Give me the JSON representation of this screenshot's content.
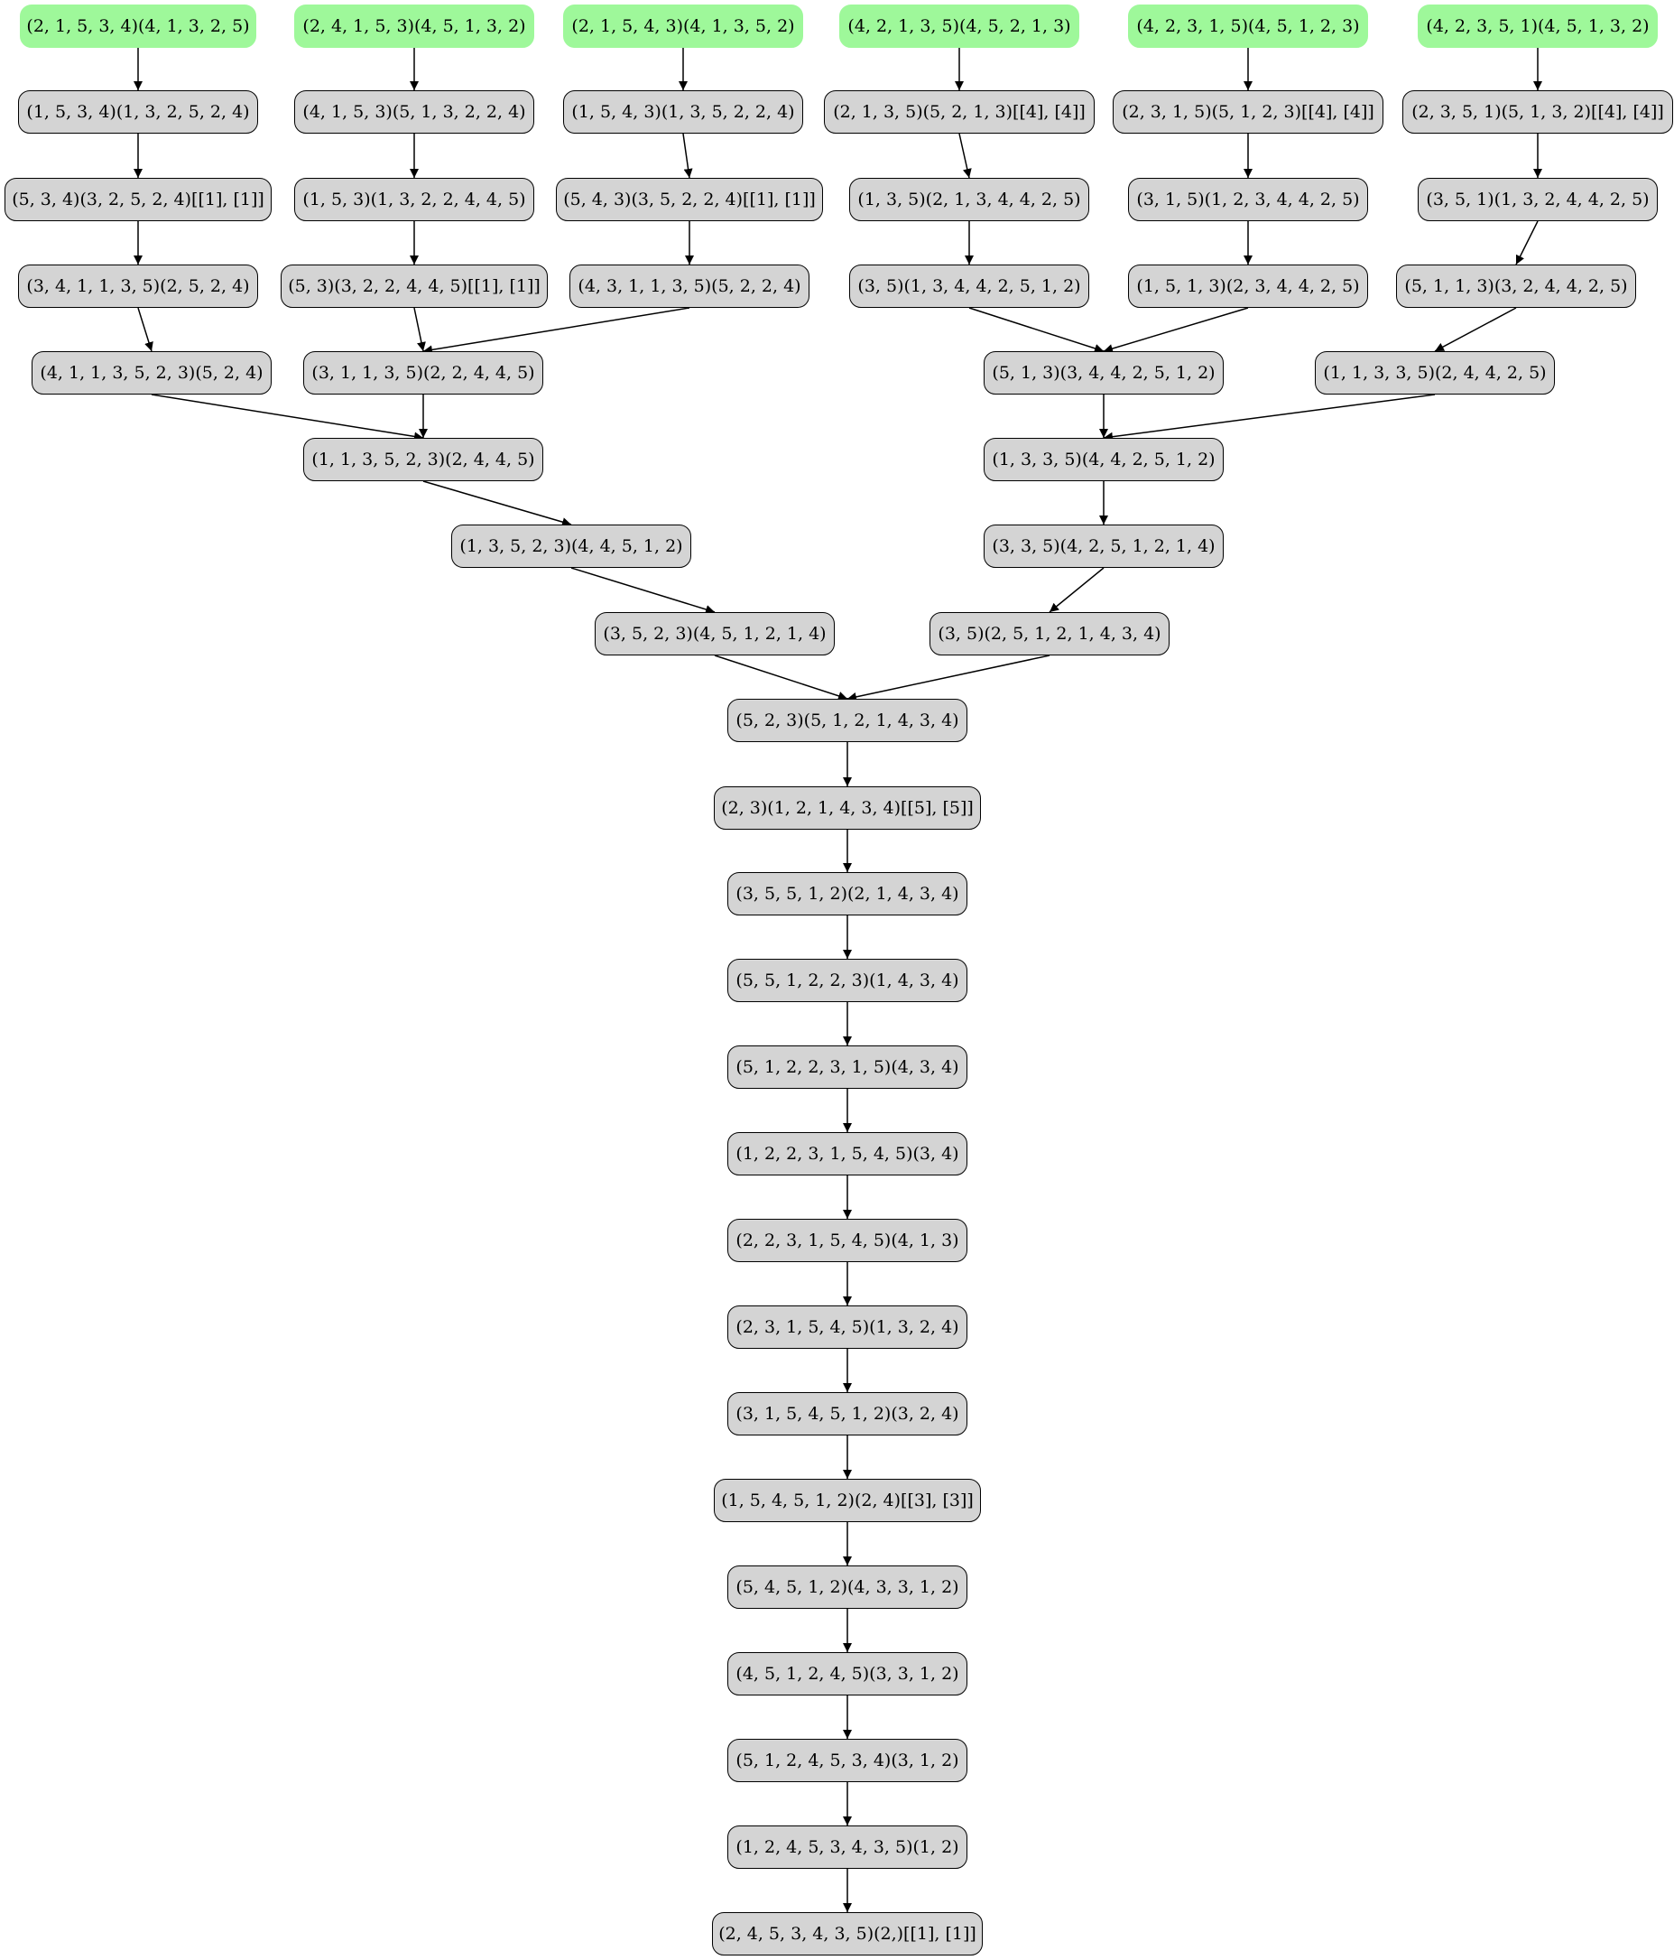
{
  "diagram": {
    "type": "directed-graph",
    "colors": {
      "source_fill": "#9ef89a",
      "inner_fill": "#d4d4d4",
      "stroke": "#000000"
    },
    "nodes": [
      {
        "id": "a0",
        "label": "(2, 1, 5, 3, 4)(4, 1, 3, 2, 5)",
        "kind": "source"
      },
      {
        "id": "b0",
        "label": "(2, 4, 1, 5, 3)(4, 5, 1, 3, 2)",
        "kind": "source"
      },
      {
        "id": "c0",
        "label": "(2, 1, 5, 4, 3)(4, 1, 3, 5, 2)",
        "kind": "source"
      },
      {
        "id": "d0",
        "label": "(4, 2, 1, 3, 5)(4, 5, 2, 1, 3)",
        "kind": "source"
      },
      {
        "id": "e0",
        "label": "(4, 2, 3, 1, 5)(4, 5, 1, 2, 3)",
        "kind": "source"
      },
      {
        "id": "f0",
        "label": "(4, 2, 3, 5, 1)(4, 5, 1, 3, 2)",
        "kind": "source"
      },
      {
        "id": "a1",
        "label": "(1, 5, 3, 4)(1, 3, 2, 5, 2, 4)",
        "kind": "inner"
      },
      {
        "id": "b1",
        "label": "(4, 1, 5, 3)(5, 1, 3, 2, 2, 4)",
        "kind": "inner"
      },
      {
        "id": "c1",
        "label": "(1, 5, 4, 3)(1, 3, 5, 2, 2, 4)",
        "kind": "inner"
      },
      {
        "id": "d1",
        "label": "(2, 1, 3, 5)(5, 2, 1, 3)[[4], [4]]",
        "kind": "inner"
      },
      {
        "id": "e1",
        "label": "(2, 3, 1, 5)(5, 1, 2, 3)[[4], [4]]",
        "kind": "inner"
      },
      {
        "id": "f1",
        "label": "(2, 3, 5, 1)(5, 1, 3, 2)[[4], [4]]",
        "kind": "inner"
      },
      {
        "id": "a2",
        "label": "(5, 3, 4)(3, 2, 5, 2, 4)[[1], [1]]",
        "kind": "inner"
      },
      {
        "id": "b2",
        "label": "(1, 5, 3)(1, 3, 2, 2, 4, 4, 5)",
        "kind": "inner"
      },
      {
        "id": "c2",
        "label": "(5, 4, 3)(3, 5, 2, 2, 4)[[1], [1]]",
        "kind": "inner"
      },
      {
        "id": "d2",
        "label": "(1, 3, 5)(2, 1, 3, 4, 4, 2, 5)",
        "kind": "inner"
      },
      {
        "id": "e2",
        "label": "(3, 1, 5)(1, 2, 3, 4, 4, 2, 5)",
        "kind": "inner"
      },
      {
        "id": "f2",
        "label": "(3, 5, 1)(1, 3, 2, 4, 4, 2, 5)",
        "kind": "inner"
      },
      {
        "id": "a3",
        "label": "(3, 4, 1, 1, 3, 5)(2, 5, 2, 4)",
        "kind": "inner"
      },
      {
        "id": "b3",
        "label": "(5, 3)(3, 2, 2, 4, 4, 5)[[1], [1]]",
        "kind": "inner"
      },
      {
        "id": "c3",
        "label": "(4, 3, 1, 1, 3, 5)(5, 2, 2, 4)",
        "kind": "inner"
      },
      {
        "id": "d3",
        "label": "(3, 5)(1, 3, 4, 4, 2, 5, 1, 2)",
        "kind": "inner"
      },
      {
        "id": "e3",
        "label": "(1, 5, 1, 3)(2, 3, 4, 4, 2, 5)",
        "kind": "inner"
      },
      {
        "id": "f3",
        "label": "(5, 1, 1, 3)(3, 2, 4, 4, 2, 5)",
        "kind": "inner"
      },
      {
        "id": "a4",
        "label": "(4, 1, 1, 3, 5, 2, 3)(5, 2, 4)",
        "kind": "inner"
      },
      {
        "id": "b4",
        "label": "(3, 1, 1, 3, 5)(2, 2, 4, 4, 5)",
        "kind": "inner"
      },
      {
        "id": "d4",
        "label": "(5, 1, 3)(3, 4, 4, 2, 5, 1, 2)",
        "kind": "inner"
      },
      {
        "id": "f4",
        "label": "(1, 1, 3, 3, 5)(2, 4, 4, 2, 5)",
        "kind": "inner"
      },
      {
        "id": "l5",
        "label": "(1, 1, 3, 5, 2, 3)(2, 4, 4, 5)",
        "kind": "inner"
      },
      {
        "id": "r5",
        "label": "(1, 3, 3, 5)(4, 4, 2, 5, 1, 2)",
        "kind": "inner"
      },
      {
        "id": "l6",
        "label": "(1, 3, 5, 2, 3)(4, 4, 5, 1, 2)",
        "kind": "inner"
      },
      {
        "id": "r6",
        "label": "(3, 3, 5)(4, 2, 5, 1, 2, 1, 4)",
        "kind": "inner"
      },
      {
        "id": "l7",
        "label": "(3, 5, 2, 3)(4, 5, 1, 2, 1, 4)",
        "kind": "inner"
      },
      {
        "id": "r7",
        "label": "(3, 5)(2, 5, 1, 2, 1, 4, 3, 4)",
        "kind": "inner"
      },
      {
        "id": "m8",
        "label": "(5, 2, 3)(5, 1, 2, 1, 4, 3, 4)",
        "kind": "inner"
      },
      {
        "id": "m9",
        "label": "(2, 3)(1, 2, 1, 4, 3, 4)[[5], [5]]",
        "kind": "inner"
      },
      {
        "id": "m10",
        "label": "(3, 5, 5, 1, 2)(2, 1, 4, 3, 4)",
        "kind": "inner"
      },
      {
        "id": "m11",
        "label": "(5, 5, 1, 2, 2, 3)(1, 4, 3, 4)",
        "kind": "inner"
      },
      {
        "id": "m12",
        "label": "(5, 1, 2, 2, 3, 1, 5)(4, 3, 4)",
        "kind": "inner"
      },
      {
        "id": "m13",
        "label": "(1, 2, 2, 3, 1, 5, 4, 5)(3, 4)",
        "kind": "inner"
      },
      {
        "id": "m14",
        "label": "(2, 2, 3, 1, 5, 4, 5)(4, 1, 3)",
        "kind": "inner"
      },
      {
        "id": "m15",
        "label": "(2, 3, 1, 5, 4, 5)(1, 3, 2, 4)",
        "kind": "inner"
      },
      {
        "id": "m16",
        "label": "(3, 1, 5, 4, 5, 1, 2)(3, 2, 4)",
        "kind": "inner"
      },
      {
        "id": "m17",
        "label": "(1, 5, 4, 5, 1, 2)(2, 4)[[3], [3]]",
        "kind": "inner"
      },
      {
        "id": "m18",
        "label": "(5, 4, 5, 1, 2)(4, 3, 3, 1, 2)",
        "kind": "inner"
      },
      {
        "id": "m19",
        "label": "(4, 5, 1, 2, 4, 5)(3, 3, 1, 2)",
        "kind": "inner"
      },
      {
        "id": "m20",
        "label": "(5, 1, 2, 4, 5, 3, 4)(3, 1, 2)",
        "kind": "inner"
      },
      {
        "id": "m21",
        "label": "(1, 2, 4, 5, 3, 4, 3, 5)(1, 2)",
        "kind": "inner"
      },
      {
        "id": "m22",
        "label": "(2, 4, 5, 3, 4, 3, 5)(2,)[[1], [1]]",
        "kind": "inner"
      }
    ],
    "edges": [
      [
        "a0",
        "a1"
      ],
      [
        "b0",
        "b1"
      ],
      [
        "c0",
        "c1"
      ],
      [
        "d0",
        "d1"
      ],
      [
        "e0",
        "e1"
      ],
      [
        "f0",
        "f1"
      ],
      [
        "a1",
        "a2"
      ],
      [
        "b1",
        "b2"
      ],
      [
        "c1",
        "c2"
      ],
      [
        "d1",
        "d2"
      ],
      [
        "e1",
        "e2"
      ],
      [
        "f1",
        "f2"
      ],
      [
        "a2",
        "a3"
      ],
      [
        "b2",
        "b3"
      ],
      [
        "c2",
        "c3"
      ],
      [
        "d2",
        "d3"
      ],
      [
        "e2",
        "e3"
      ],
      [
        "f2",
        "f3"
      ],
      [
        "a3",
        "a4"
      ],
      [
        "b3",
        "b4"
      ],
      [
        "c3",
        "b4"
      ],
      [
        "d3",
        "d4"
      ],
      [
        "e3",
        "d4"
      ],
      [
        "f3",
        "f4"
      ],
      [
        "a4",
        "l5"
      ],
      [
        "b4",
        "l5"
      ],
      [
        "d4",
        "r5"
      ],
      [
        "f4",
        "r5"
      ],
      [
        "l5",
        "l6"
      ],
      [
        "r5",
        "r6"
      ],
      [
        "l6",
        "l7"
      ],
      [
        "r6",
        "r7"
      ],
      [
        "l7",
        "m8"
      ],
      [
        "r7",
        "m8"
      ],
      [
        "m8",
        "m9"
      ],
      [
        "m9",
        "m10"
      ],
      [
        "m10",
        "m11"
      ],
      [
        "m11",
        "m12"
      ],
      [
        "m12",
        "m13"
      ],
      [
        "m13",
        "m14"
      ],
      [
        "m14",
        "m15"
      ],
      [
        "m15",
        "m16"
      ],
      [
        "m16",
        "m17"
      ],
      [
        "m17",
        "m18"
      ],
      [
        "m18",
        "m19"
      ],
      [
        "m19",
        "m20"
      ],
      [
        "m20",
        "m21"
      ],
      [
        "m21",
        "m22"
      ]
    ]
  }
}
